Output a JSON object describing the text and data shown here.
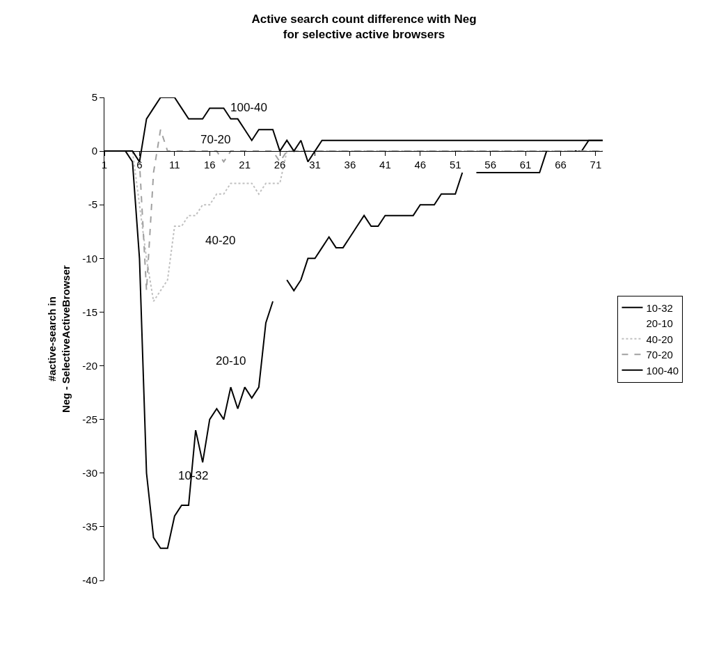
{
  "chart_data": {
    "type": "line",
    "title": "Active search count difference with Neg\nfor selective active browsers",
    "ylabel": "#active-search in\nNeg - SelectiveActiveBrowser",
    "x": [
      1,
      2,
      3,
      4,
      5,
      6,
      7,
      8,
      9,
      10,
      11,
      12,
      13,
      14,
      15,
      16,
      17,
      18,
      19,
      20,
      21,
      22,
      23,
      24,
      25,
      26,
      27,
      28,
      29,
      30,
      31,
      32,
      33,
      34,
      35,
      36,
      37,
      38,
      39,
      40,
      41,
      42,
      43,
      44,
      45,
      46,
      47,
      48,
      49,
      50,
      51,
      52,
      53,
      54,
      55,
      56,
      57,
      58,
      59,
      60,
      61,
      62,
      63,
      64,
      65,
      66,
      67,
      68,
      69,
      70,
      71,
      72
    ],
    "series": [
      {
        "name": "10-32",
        "color": "#000000",
        "line_style": "solid",
        "values": [
          0,
          0,
          0,
          0,
          -1,
          -10,
          -30,
          -36,
          -37,
          -37,
          -34,
          -33,
          -33,
          -26,
          -29,
          -25,
          -24,
          -25,
          -22,
          -24,
          -22,
          -23,
          -22,
          -16,
          -14,
          null,
          -12,
          -13,
          -12,
          -10,
          -10,
          -9,
          -8,
          -9,
          -9,
          -8,
          -7,
          -6,
          -7,
          -7,
          -6,
          -6,
          -6,
          -6,
          -6,
          -5,
          -5,
          -5,
          -4,
          -4,
          -4,
          -2,
          null,
          -2,
          -2,
          -2,
          -2,
          -2,
          -2,
          -2,
          -2,
          -2,
          -2,
          0,
          null,
          null,
          null,
          0,
          0,
          1,
          1,
          1
        ]
      },
      {
        "name": "20-10",
        "line_style": "solid",
        "values": [
          null,
          null,
          null,
          null,
          null,
          null,
          null,
          null,
          null,
          null,
          null,
          null,
          null,
          null,
          null,
          null,
          null,
          null,
          null,
          null,
          null,
          null,
          null,
          null,
          null,
          null,
          null,
          null,
          null,
          null,
          null,
          null,
          null,
          null,
          null,
          null,
          null,
          null,
          null,
          null,
          null,
          null,
          null,
          null,
          null,
          null,
          null,
          null,
          null,
          null,
          null,
          null,
          null,
          null,
          null,
          null,
          null,
          null,
          null,
          null,
          null,
          null,
          null,
          null,
          null,
          null,
          null,
          null,
          null,
          null,
          null,
          null
        ]
      },
      {
        "name": "40-20",
        "color": "#c0c0c0",
        "line_style": "dotted",
        "values": [
          0,
          0,
          0,
          0,
          0,
          -5,
          -10,
          -14,
          -13,
          -12,
          -7,
          -7,
          -6,
          -6,
          -5,
          -5,
          -4,
          -4,
          -3,
          -3,
          -3,
          -3,
          -4,
          -3,
          -3,
          -3,
          0,
          0,
          0,
          0,
          0,
          0,
          0,
          0,
          0,
          0,
          0,
          0,
          0,
          0,
          0,
          0,
          0,
          0,
          0,
          0,
          0,
          0,
          0,
          0,
          0,
          0,
          0,
          0,
          0,
          0,
          0,
          0,
          0,
          0,
          0,
          0,
          0,
          0,
          0,
          0,
          0,
          0,
          0,
          0,
          0,
          0
        ]
      },
      {
        "name": "70-20",
        "color": "#a0a0a0",
        "line_style": "dashed",
        "values": [
          0,
          0,
          0,
          0,
          0,
          -1,
          -13,
          -2,
          2,
          0,
          0,
          0,
          0,
          0,
          0,
          0,
          0,
          -1,
          0,
          0,
          0,
          0,
          0,
          0,
          0,
          -1,
          0,
          0,
          0,
          0,
          0,
          0,
          0,
          0,
          0,
          0,
          0,
          0,
          0,
          0,
          0,
          0,
          0,
          0,
          0,
          0,
          0,
          0,
          0,
          0,
          0,
          0,
          0,
          0,
          0,
          0,
          0,
          0,
          0,
          0,
          0,
          0,
          0,
          0,
          0,
          0,
          0,
          0,
          0,
          0,
          0,
          0
        ]
      },
      {
        "name": "100-40",
        "color": "#000000",
        "line_style": "solid",
        "values": [
          0,
          0,
          0,
          0,
          0,
          -1,
          3,
          4,
          5,
          5,
          5,
          4,
          3,
          3,
          3,
          4,
          4,
          4,
          3,
          3,
          2,
          1,
          2,
          2,
          2,
          0,
          1,
          0,
          1,
          -1,
          0,
          1,
          1,
          1,
          1,
          1,
          1,
          1,
          1,
          1,
          1,
          1,
          1,
          1,
          1,
          1,
          1,
          1,
          1,
          1,
          1,
          1,
          1,
          1,
          1,
          1,
          1,
          1,
          1,
          1,
          1,
          1,
          1,
          1,
          1,
          1,
          1,
          1,
          1,
          1,
          1,
          1
        ]
      }
    ],
    "xlim": [
      1,
      72
    ],
    "xticks": [
      1,
      6,
      11,
      16,
      21,
      26,
      31,
      36,
      41,
      46,
      51,
      56,
      61,
      66,
      71
    ],
    "ylim": [
      -40,
      5
    ],
    "yticks": [
      -40,
      -35,
      -30,
      -25,
      -20,
      -15,
      -10,
      -5,
      0,
      5
    ],
    "grid": false,
    "legend": "right",
    "marker": "none",
    "annotations": [
      "100-40",
      "70-20",
      "40-20",
      "20-10",
      "10-32"
    ]
  }
}
